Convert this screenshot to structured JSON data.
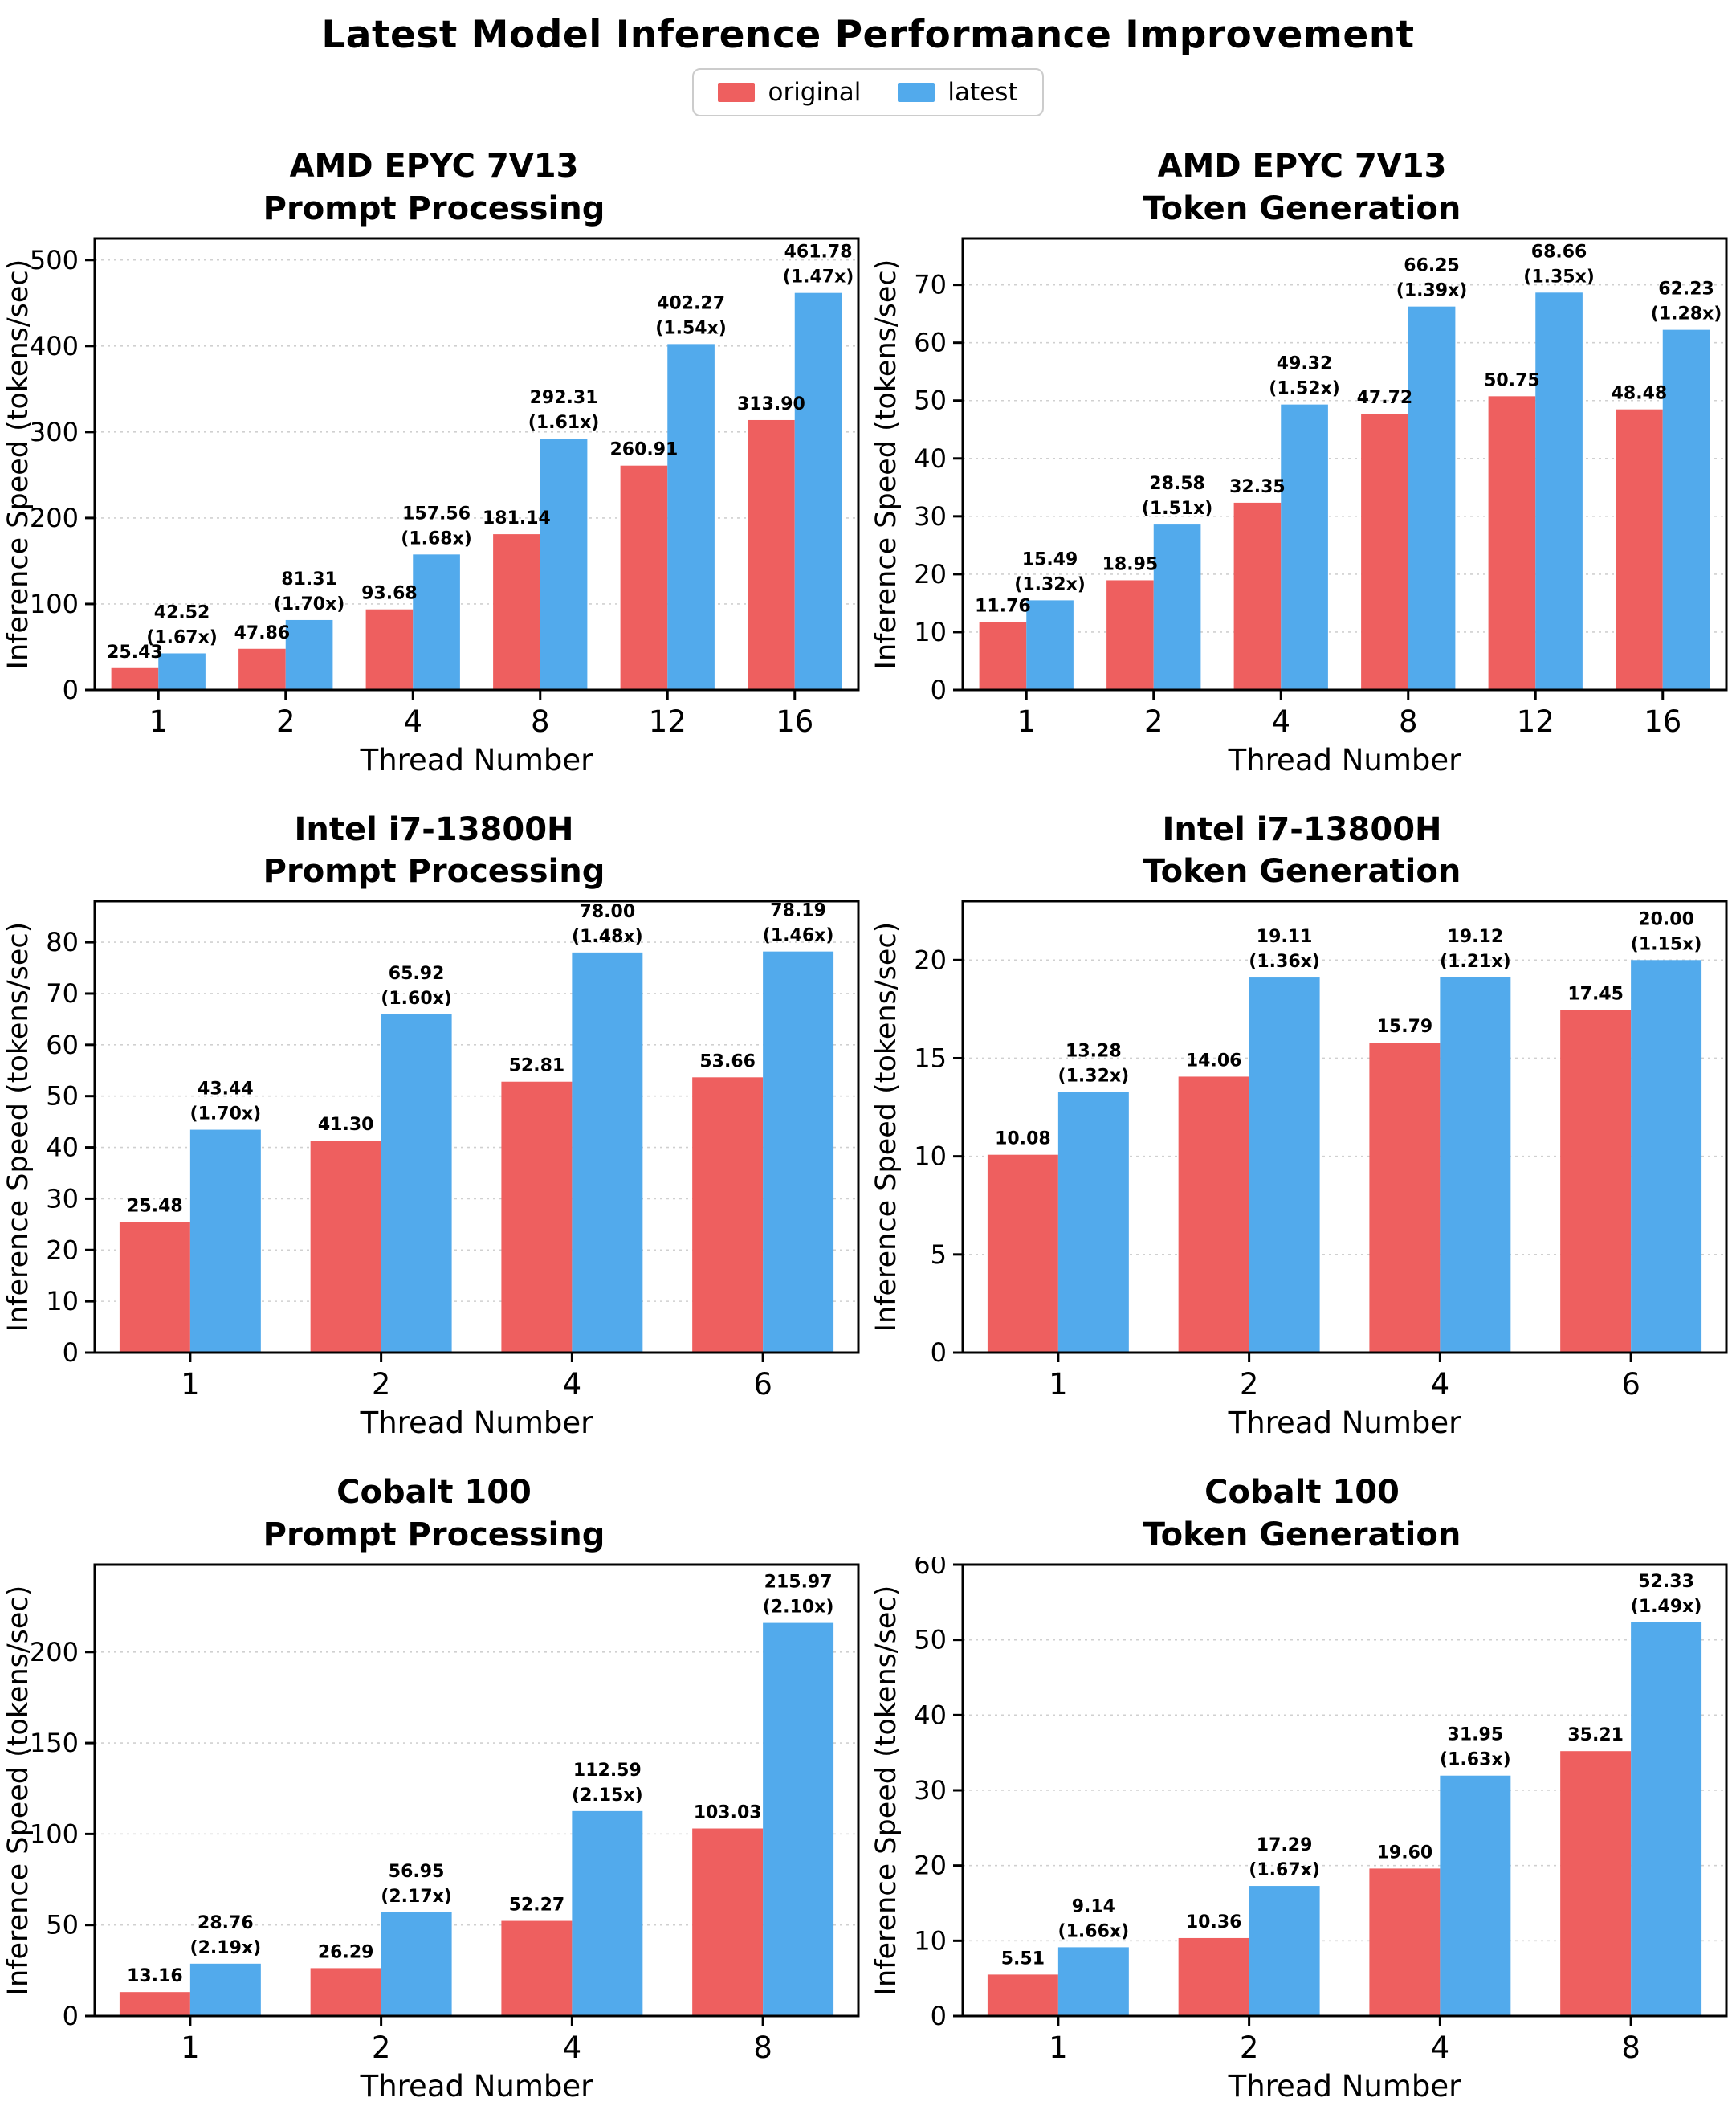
{
  "figure_title": "Latest Model Inference Performance Improvement",
  "legend": {
    "items": [
      {
        "label": "original",
        "color": "#ee5f5f"
      },
      {
        "label": "latest",
        "color": "#52aaec"
      }
    ]
  },
  "style": {
    "original_color": "#ee5f5f",
    "latest_color": "#52aaec",
    "grid_color": "#d0d0d0",
    "spine_color": "#000000"
  },
  "chart_data": [
    {
      "type": "bar",
      "title_line1": "AMD EPYC 7V13",
      "title_line2": "Prompt Processing",
      "xlabel": "Thread Number",
      "ylabel": "Inference Speed (tokens/sec)",
      "categories": [
        "1",
        "2",
        "4",
        "8",
        "12",
        "16"
      ],
      "series": [
        {
          "name": "original",
          "values": [
            "25.43",
            "47.86",
            "93.68",
            "181.14",
            "260.91",
            "313.90"
          ]
        },
        {
          "name": "latest",
          "values": [
            "42.52",
            "81.31",
            "157.56",
            "292.31",
            "402.27",
            "461.78"
          ],
          "ratios": [
            "1.67x",
            "1.70x",
            "1.68x",
            "1.61x",
            "1.54x",
            "1.47x"
          ]
        }
      ],
      "yticks": [
        0,
        100,
        200,
        300,
        400,
        500
      ],
      "ylim": [
        0,
        525
      ],
      "grid": "dashed-horizontal",
      "legend_position": "figure-top"
    },
    {
      "type": "bar",
      "title_line1": "AMD EPYC 7V13",
      "title_line2": "Token Generation",
      "xlabel": "Thread Number",
      "ylabel": "Inference Speed (tokens/sec)",
      "categories": [
        "1",
        "2",
        "4",
        "8",
        "12",
        "16"
      ],
      "series": [
        {
          "name": "original",
          "values": [
            "11.76",
            "18.95",
            "32.35",
            "47.72",
            "50.75",
            "48.48"
          ]
        },
        {
          "name": "latest",
          "values": [
            "15.49",
            "28.58",
            "49.32",
            "66.25",
            "68.66",
            "62.23"
          ],
          "ratios": [
            "1.32x",
            "1.51x",
            "1.52x",
            "1.39x",
            "1.35x",
            "1.28x"
          ]
        }
      ],
      "yticks": [
        0,
        10,
        20,
        30,
        40,
        50,
        60,
        70
      ],
      "ylim": [
        0,
        78
      ],
      "grid": "dashed-horizontal",
      "legend_position": "figure-top"
    },
    {
      "type": "bar",
      "title_line1": "Intel i7-13800H",
      "title_line2": "Prompt Processing",
      "xlabel": "Thread Number",
      "ylabel": "Inference Speed (tokens/sec)",
      "categories": [
        "1",
        "2",
        "4",
        "6"
      ],
      "series": [
        {
          "name": "original",
          "values": [
            "25.48",
            "41.30",
            "52.81",
            "53.66"
          ]
        },
        {
          "name": "latest",
          "values": [
            "43.44",
            "65.92",
            "78.00",
            "78.19"
          ],
          "ratios": [
            "1.70x",
            "1.60x",
            "1.48x",
            "1.46x"
          ]
        }
      ],
      "yticks": [
        0,
        10,
        20,
        30,
        40,
        50,
        60,
        70,
        80
      ],
      "ylim": [
        0,
        88
      ],
      "grid": "dashed-horizontal",
      "legend_position": "figure-top"
    },
    {
      "type": "bar",
      "title_line1": "Intel i7-13800H",
      "title_line2": "Token Generation",
      "xlabel": "Thread Number",
      "ylabel": "Inference Speed (tokens/sec)",
      "categories": [
        "1",
        "2",
        "4",
        "6"
      ],
      "series": [
        {
          "name": "original",
          "values": [
            "10.08",
            "14.06",
            "15.79",
            "17.45"
          ]
        },
        {
          "name": "latest",
          "values": [
            "13.28",
            "19.11",
            "19.12",
            "20.00"
          ],
          "ratios": [
            "1.32x",
            "1.36x",
            "1.21x",
            "1.15x"
          ]
        }
      ],
      "yticks": [
        0,
        5,
        10,
        15,
        20
      ],
      "ylim": [
        0,
        23
      ],
      "grid": "dashed-horizontal",
      "legend_position": "figure-top"
    },
    {
      "type": "bar",
      "title_line1": "Cobalt 100",
      "title_line2": "Prompt Processing",
      "xlabel": "Thread Number",
      "ylabel": "Inference Speed (tokens/sec)",
      "categories": [
        "1",
        "2",
        "4",
        "8"
      ],
      "series": [
        {
          "name": "original",
          "values": [
            "13.16",
            "26.29",
            "52.27",
            "103.03"
          ]
        },
        {
          "name": "latest",
          "values": [
            "28.76",
            "56.95",
            "112.59",
            "215.97"
          ],
          "ratios": [
            "2.19x",
            "2.17x",
            "2.15x",
            "2.10x"
          ]
        }
      ],
      "yticks": [
        0,
        50,
        100,
        150,
        200
      ],
      "ylim": [
        0,
        248
      ],
      "grid": "dashed-horizontal",
      "legend_position": "figure-top"
    },
    {
      "type": "bar",
      "title_line1": "Cobalt 100",
      "title_line2": "Token Generation",
      "xlabel": "Thread Number",
      "ylabel": "Inference Speed (tokens/sec)",
      "categories": [
        "1",
        "2",
        "4",
        "8"
      ],
      "series": [
        {
          "name": "original",
          "values": [
            "5.51",
            "10.36",
            "19.60",
            "35.21"
          ]
        },
        {
          "name": "latest",
          "values": [
            "9.14",
            "17.29",
            "31.95",
            "52.33"
          ],
          "ratios": [
            "1.66x",
            "1.67x",
            "1.63x",
            "1.49x"
          ]
        }
      ],
      "yticks": [
        0,
        10,
        20,
        30,
        40,
        50,
        60
      ],
      "ylim": [
        0,
        60
      ],
      "grid": "dashed-horizontal",
      "legend_position": "figure-top"
    }
  ]
}
